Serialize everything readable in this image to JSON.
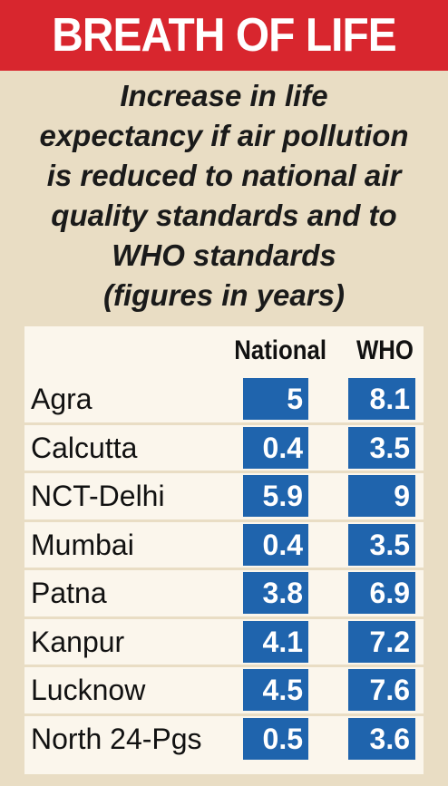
{
  "header": {
    "title": "BREATH OF LIFE",
    "subtitle_lines": [
      "Increase in life",
      "expectancy if air pollution",
      "is reduced to national air",
      "quality standards and to",
      "WHO standards",
      "(figures in years)"
    ]
  },
  "colors": {
    "banner": "#d8262e",
    "background": "#e9ddc4",
    "table_panel": "#fbf6ec",
    "cell": "#1f64ad"
  },
  "chart_data": {
    "type": "table",
    "title": "BREATH OF LIFE",
    "columns": [
      "National",
      "WHO"
    ],
    "rows": [
      {
        "city": "Agra",
        "values": [
          "5",
          "8.1"
        ]
      },
      {
        "city": "Calcutta",
        "values": [
          "0.4",
          "3.5"
        ]
      },
      {
        "city": "NCT-Delhi",
        "values": [
          "5.9",
          "9"
        ]
      },
      {
        "city": "Mumbai",
        "values": [
          "0.4",
          "3.5"
        ]
      },
      {
        "city": "Patna",
        "values": [
          "3.8",
          "6.9"
        ]
      },
      {
        "city": "Kanpur",
        "values": [
          "4.1",
          "7.2"
        ]
      },
      {
        "city": "Lucknow",
        "values": [
          "4.5",
          "7.6"
        ]
      },
      {
        "city": "North 24-Pgs",
        "values": [
          "0.5",
          "3.6"
        ]
      }
    ]
  }
}
